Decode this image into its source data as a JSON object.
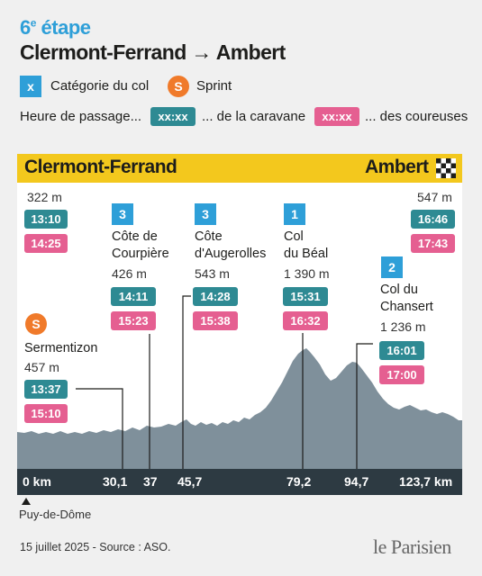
{
  "header": {
    "stage_number": "6",
    "stage_suffix": "e",
    "stage_word": " étape",
    "route_title": "Clermont-Ferrand → Ambert"
  },
  "legend": {
    "category_symbol": "x",
    "category_label": "Catégorie du col",
    "sprint_symbol": "S",
    "sprint_label": "Sprint",
    "time_label": "Heure de passage...",
    "caravan_sample": "xx:xx",
    "caravan_label": "... de la caravane",
    "riders_sample": "xx:xx",
    "riders_label": "... des coureuses"
  },
  "colors": {
    "blue": "#2e9fd8",
    "caravan": "#2e8a93",
    "riders": "#e55f91",
    "sprint": "#f07a2a",
    "header_bar": "#f3c81d",
    "profile": "#7f909b",
    "km_bar": "#2d3a42"
  },
  "profile": {
    "start_name": "Clermont-Ferrand",
    "end_name": "Ambert",
    "finish_icon": "checkered-flag-icon",
    "start": {
      "altitude": "322 m",
      "caravan": "13:10",
      "riders": "14:25"
    },
    "finish": {
      "altitude": "547 m",
      "caravan": "16:46",
      "riders": "17:43"
    },
    "sprint_point": {
      "badge": "S",
      "name": "Sermentizon",
      "altitude": "457 m",
      "caravan": "13:37",
      "riders": "15:10"
    },
    "climbs": [
      {
        "category": "3",
        "name_line1": "Côte de",
        "name_line2": "Courpière",
        "altitude": "426 m",
        "caravan": "14:11",
        "riders": "15:23"
      },
      {
        "category": "3",
        "name_line1": "Côte",
        "name_line2": "d'Augerolles",
        "altitude": "543 m",
        "caravan": "14:28",
        "riders": "15:38"
      },
      {
        "category": "1",
        "name_line1": "Col",
        "name_line2": "du Béal",
        "altitude": "1 390 m",
        "caravan": "15:31",
        "riders": "16:32"
      },
      {
        "category": "2",
        "name_line1": "Col du",
        "name_line2": "Chansert",
        "altitude": "1 236 m",
        "caravan": "16:01",
        "riders": "17:00"
      }
    ],
    "km_markers": [
      "0 km",
      "30,1",
      "37",
      "45,7",
      "79,2",
      "94,7",
      "123,7 km"
    ],
    "start_location": "Puy-de-Dôme"
  },
  "footer": {
    "source": "15 juillet 2025 - Source : ASO.",
    "brand": "le Parisien"
  }
}
